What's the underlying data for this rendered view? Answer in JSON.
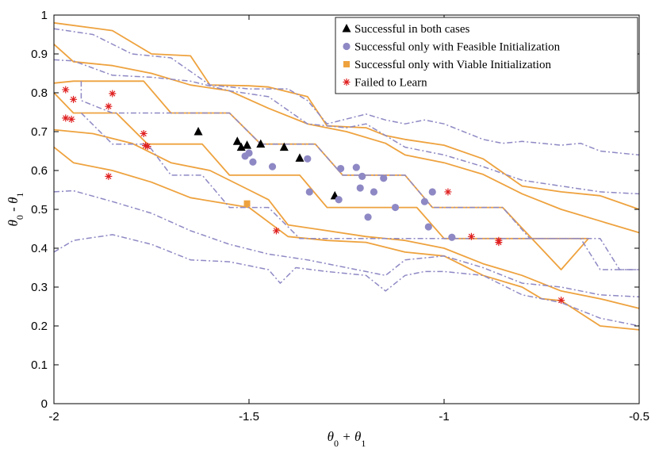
{
  "chart_data": {
    "type": "scatter",
    "xlabel": "θ0 + θ1",
    "ylabel": "θ0 - θ1",
    "xlim": [
      -2,
      -0.5
    ],
    "ylim": [
      0,
      1
    ],
    "x_ticks": [
      -2,
      -1.5,
      -1,
      -0.5
    ],
    "x_tick_labels": [
      "-2",
      "-1.5",
      "-1",
      "-0.5"
    ],
    "y_ticks": [
      0,
      0.1,
      0.2,
      0.3,
      0.4,
      0.5,
      0.6,
      0.7,
      0.8,
      0.9,
      1
    ],
    "y_tick_labels": [
      "0",
      "0.1",
      "0.2",
      "0.3",
      "0.4",
      "0.5",
      "0.6",
      "0.7",
      "0.8",
      "0.9",
      "1"
    ],
    "grid": false,
    "legend_position": "top-right",
    "colors": {
      "orange": "#EEA23E",
      "purple": "#8E89C4",
      "triangle": "#000000",
      "square": "#EEA23E",
      "star": "#E02020"
    },
    "series": [
      {
        "name": "Successful in both cases",
        "marker": "triangle",
        "points": [
          [
            -1.63,
            0.7
          ],
          [
            -1.53,
            0.675
          ],
          [
            -1.52,
            0.66
          ],
          [
            -1.505,
            0.665
          ],
          [
            -1.47,
            0.668
          ],
          [
            -1.41,
            0.66
          ],
          [
            -1.37,
            0.632
          ],
          [
            -1.28,
            0.535
          ]
        ]
      },
      {
        "name": "Successful only with Feasible Initialization",
        "marker": "circle",
        "points": [
          [
            -1.5,
            0.645
          ],
          [
            -1.51,
            0.637
          ],
          [
            -1.49,
            0.622
          ],
          [
            -1.44,
            0.61
          ],
          [
            -1.35,
            0.63
          ],
          [
            -1.345,
            0.545
          ],
          [
            -1.265,
            0.605
          ],
          [
            -1.225,
            0.608
          ],
          [
            -1.21,
            0.585
          ],
          [
            -1.215,
            0.555
          ],
          [
            -1.18,
            0.545
          ],
          [
            -1.155,
            0.58
          ],
          [
            -1.125,
            0.505
          ],
          [
            -1.27,
            0.525
          ],
          [
            -1.195,
            0.48
          ],
          [
            -1.05,
            0.52
          ],
          [
            -1.03,
            0.545
          ],
          [
            -1.04,
            0.455
          ],
          [
            -0.98,
            0.428
          ]
        ]
      },
      {
        "name": "Successful only with Viable Initialization",
        "marker": "square",
        "points": [
          [
            -1.505,
            0.515
          ]
        ]
      },
      {
        "name": "Failed to Learn",
        "marker": "star",
        "points": [
          [
            -1.97,
            0.808
          ],
          [
            -1.95,
            0.783
          ],
          [
            -1.85,
            0.798
          ],
          [
            -1.86,
            0.765
          ],
          [
            -1.97,
            0.735
          ],
          [
            -1.955,
            0.732
          ],
          [
            -1.77,
            0.695
          ],
          [
            -1.765,
            0.664
          ],
          [
            -1.76,
            0.662
          ],
          [
            -1.86,
            0.585
          ],
          [
            -1.43,
            0.445
          ],
          [
            -0.99,
            0.545
          ],
          [
            -0.93,
            0.43
          ],
          [
            -0.86,
            0.42
          ],
          [
            -0.86,
            0.415
          ],
          [
            -0.7,
            0.266
          ]
        ]
      }
    ],
    "boundary_lines": [
      {
        "style": "solid",
        "color": "orange",
        "points": [
          [
            -2,
            0.98
          ],
          [
            -1.85,
            0.96
          ],
          [
            -1.75,
            0.9
          ],
          [
            -1.65,
            0.895
          ],
          [
            -1.6,
            0.82
          ],
          [
            -1.5,
            0.818
          ],
          [
            -1.45,
            0.815
          ],
          [
            -1.35,
            0.79
          ],
          [
            -1.3,
            0.715
          ],
          [
            -1.2,
            0.71
          ],
          [
            -1.15,
            0.69
          ],
          [
            -1.1,
            0.68
          ],
          [
            -1.0,
            0.665
          ],
          [
            -0.9,
            0.63
          ],
          [
            -0.8,
            0.56
          ],
          [
            -0.7,
            0.545
          ],
          [
            -0.6,
            0.535
          ],
          [
            -0.5,
            0.5
          ]
        ]
      },
      {
        "style": "solid",
        "color": "orange",
        "points": [
          [
            -2,
            0.925
          ],
          [
            -1.95,
            0.88
          ],
          [
            -1.85,
            0.87
          ],
          [
            -1.75,
            0.85
          ],
          [
            -1.65,
            0.82
          ],
          [
            -1.55,
            0.805
          ],
          [
            -1.45,
            0.76
          ],
          [
            -1.35,
            0.72
          ],
          [
            -1.25,
            0.7
          ],
          [
            -1.15,
            0.67
          ],
          [
            -1.1,
            0.64
          ],
          [
            -1.0,
            0.62
          ],
          [
            -0.9,
            0.59
          ],
          [
            -0.8,
            0.54
          ],
          [
            -0.7,
            0.5
          ],
          [
            -0.6,
            0.47
          ],
          [
            -0.5,
            0.44
          ]
        ]
      },
      {
        "style": "solid",
        "color": "orange",
        "points": [
          [
            -2,
            0.825
          ],
          [
            -1.95,
            0.83
          ],
          [
            -1.77,
            0.83
          ],
          [
            -1.7,
            0.748
          ],
          [
            -1.55,
            0.748
          ],
          [
            -1.47,
            0.668
          ],
          [
            -1.33,
            0.668
          ],
          [
            -1.26,
            0.588
          ],
          [
            -1.1,
            0.588
          ],
          [
            -1.03,
            0.505
          ],
          [
            -0.85,
            0.505
          ],
          [
            -0.7,
            0.345
          ],
          [
            -0.63,
            0.425
          ],
          [
            -1.0,
            0.425
          ],
          [
            -1.07,
            0.505
          ],
          [
            -1.3,
            0.505
          ],
          [
            -1.37,
            0.588
          ],
          [
            -1.55,
            0.588
          ],
          [
            -1.62,
            0.668
          ],
          [
            -1.76,
            0.668
          ],
          [
            -1.84,
            0.748
          ],
          [
            -1.95,
            0.748
          ],
          [
            -2,
            0.8
          ]
        ]
      },
      {
        "style": "solid",
        "color": "orange",
        "points": [
          [
            -2,
            0.705
          ],
          [
            -1.9,
            0.695
          ],
          [
            -1.8,
            0.67
          ],
          [
            -1.7,
            0.62
          ],
          [
            -1.6,
            0.6
          ],
          [
            -1.5,
            0.55
          ],
          [
            -1.45,
            0.525
          ],
          [
            -1.4,
            0.46
          ],
          [
            -1.3,
            0.445
          ],
          [
            -1.2,
            0.43
          ],
          [
            -1.1,
            0.42
          ],
          [
            -1.0,
            0.4
          ],
          [
            -0.9,
            0.36
          ],
          [
            -0.8,
            0.33
          ],
          [
            -0.7,
            0.29
          ],
          [
            -0.6,
            0.27
          ],
          [
            -0.5,
            0.245
          ]
        ]
      },
      {
        "style": "solid",
        "color": "orange",
        "points": [
          [
            -2,
            0.66
          ],
          [
            -1.95,
            0.62
          ],
          [
            -1.85,
            0.6
          ],
          [
            -1.75,
            0.57
          ],
          [
            -1.65,
            0.53
          ],
          [
            -1.5,
            0.505
          ],
          [
            -1.4,
            0.43
          ],
          [
            -1.3,
            0.42
          ],
          [
            -1.2,
            0.415
          ],
          [
            -1.1,
            0.39
          ],
          [
            -1.0,
            0.38
          ],
          [
            -0.9,
            0.33
          ],
          [
            -0.8,
            0.3
          ],
          [
            -0.75,
            0.27
          ],
          [
            -0.7,
            0.265
          ],
          [
            -0.6,
            0.2
          ],
          [
            -0.5,
            0.19
          ]
        ]
      },
      {
        "style": "dashdot",
        "color": "purple",
        "points": [
          [
            -2,
            0.965
          ],
          [
            -1.9,
            0.95
          ],
          [
            -1.8,
            0.9
          ],
          [
            -1.7,
            0.89
          ],
          [
            -1.6,
            0.82
          ],
          [
            -1.5,
            0.81
          ],
          [
            -1.4,
            0.81
          ],
          [
            -1.35,
            0.78
          ],
          [
            -1.3,
            0.72
          ],
          [
            -1.2,
            0.745
          ],
          [
            -1.15,
            0.73
          ],
          [
            -1.1,
            0.72
          ],
          [
            -1.05,
            0.73
          ],
          [
            -1.0,
            0.72
          ],
          [
            -0.9,
            0.68
          ],
          [
            -0.85,
            0.67
          ],
          [
            -0.8,
            0.675
          ],
          [
            -0.75,
            0.67
          ],
          [
            -0.7,
            0.665
          ],
          [
            -0.65,
            0.67
          ],
          [
            -0.6,
            0.65
          ],
          [
            -0.5,
            0.64
          ]
        ]
      },
      {
        "style": "dashdot",
        "color": "purple",
        "points": [
          [
            -2,
            0.885
          ],
          [
            -1.95,
            0.882
          ],
          [
            -1.85,
            0.845
          ],
          [
            -1.75,
            0.84
          ],
          [
            -1.65,
            0.83
          ],
          [
            -1.55,
            0.805
          ],
          [
            -1.45,
            0.79
          ],
          [
            -1.35,
            0.72
          ],
          [
            -1.25,
            0.71
          ],
          [
            -1.2,
            0.72
          ],
          [
            -1.1,
            0.66
          ],
          [
            -1.0,
            0.64
          ],
          [
            -0.9,
            0.61
          ],
          [
            -0.8,
            0.575
          ],
          [
            -0.7,
            0.56
          ],
          [
            -0.6,
            0.545
          ],
          [
            -0.5,
            0.54
          ]
        ]
      },
      {
        "style": "dashdot",
        "color": "purple",
        "points": [
          [
            -1.93,
            0.83
          ],
          [
            -1.93,
            0.78
          ],
          [
            -1.85,
            0.748
          ],
          [
            -1.55,
            0.748
          ],
          [
            -1.47,
            0.668
          ],
          [
            -1.33,
            0.668
          ],
          [
            -1.26,
            0.588
          ],
          [
            -1.1,
            0.588
          ],
          [
            -1.03,
            0.505
          ],
          [
            -0.85,
            0.505
          ],
          [
            -0.78,
            0.425
          ],
          [
            -0.6,
            0.425
          ],
          [
            -0.55,
            0.345
          ],
          [
            -0.5,
            0.345
          ]
        ]
      },
      {
        "style": "dashdot",
        "color": "purple",
        "points": [
          [
            -1.93,
            0.748
          ],
          [
            -1.85,
            0.668
          ],
          [
            -1.76,
            0.668
          ],
          [
            -1.7,
            0.588
          ],
          [
            -1.62,
            0.588
          ],
          [
            -1.55,
            0.505
          ],
          [
            -1.45,
            0.505
          ],
          [
            -1.37,
            0.425
          ],
          [
            -1.3,
            0.425
          ],
          [
            -1.2,
            0.425
          ],
          [
            -1.0,
            0.425
          ],
          [
            -0.65,
            0.425
          ],
          [
            -0.6,
            0.345
          ],
          [
            -0.5,
            0.345
          ]
        ]
      },
      {
        "style": "dashdot",
        "color": "purple",
        "points": [
          [
            -2,
            0.545
          ],
          [
            -1.95,
            0.548
          ],
          [
            -1.85,
            0.52
          ],
          [
            -1.75,
            0.49
          ],
          [
            -1.65,
            0.445
          ],
          [
            -1.55,
            0.41
          ],
          [
            -1.45,
            0.385
          ],
          [
            -1.35,
            0.37
          ],
          [
            -1.3,
            0.36
          ],
          [
            -1.2,
            0.34
          ],
          [
            -1.15,
            0.33
          ],
          [
            -1.1,
            0.37
          ],
          [
            -1.0,
            0.38
          ],
          [
            -0.9,
            0.35
          ],
          [
            -0.8,
            0.31
          ],
          [
            -0.7,
            0.3
          ],
          [
            -0.6,
            0.28
          ],
          [
            -0.5,
            0.275
          ]
        ]
      },
      {
        "style": "dashdot",
        "color": "purple",
        "points": [
          [
            -2,
            0.39
          ],
          [
            -1.95,
            0.42
          ],
          [
            -1.85,
            0.435
          ],
          [
            -1.75,
            0.41
          ],
          [
            -1.65,
            0.37
          ],
          [
            -1.55,
            0.365
          ],
          [
            -1.45,
            0.345
          ],
          [
            -1.42,
            0.31
          ],
          [
            -1.38,
            0.35
          ],
          [
            -1.3,
            0.34
          ],
          [
            -1.2,
            0.33
          ],
          [
            -1.15,
            0.29
          ],
          [
            -1.1,
            0.33
          ],
          [
            -1.05,
            0.34
          ],
          [
            -1.0,
            0.34
          ],
          [
            -0.9,
            0.33
          ],
          [
            -0.8,
            0.28
          ],
          [
            -0.7,
            0.26
          ],
          [
            -0.6,
            0.22
          ],
          [
            -0.5,
            0.2
          ]
        ]
      }
    ]
  }
}
